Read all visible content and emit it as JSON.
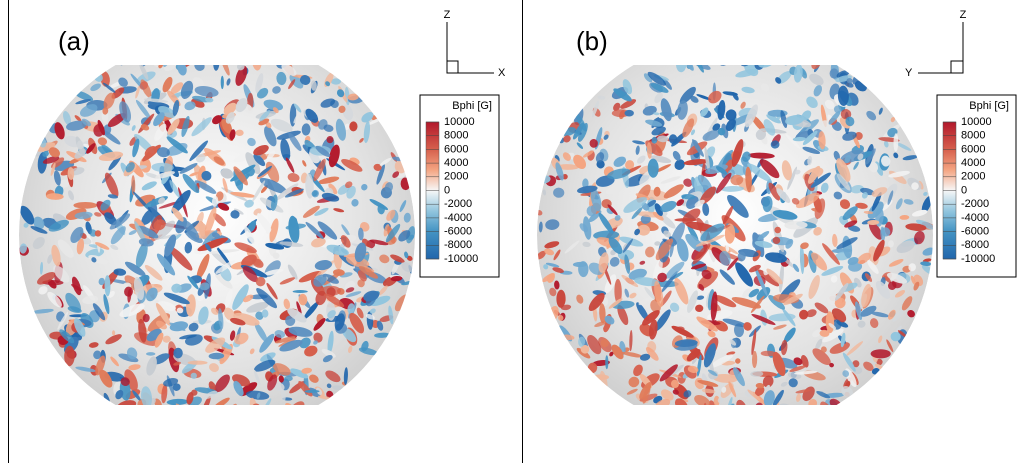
{
  "panels": [
    {
      "label": "(a)",
      "axes": {
        "up": "Z",
        "side": "X"
      },
      "colorbar": {
        "title": "Bphi [G]",
        "ticks": [
          10000,
          8000,
          6000,
          4000,
          2000,
          0,
          -2000,
          -4000,
          -6000,
          -8000,
          -10000
        ]
      }
    },
    {
      "label": "(b)",
      "axes": {
        "up": "Z",
        "side": "Y"
      },
      "colorbar": {
        "title": "Bphi [G]",
        "ticks": [
          10000,
          8000,
          6000,
          4000,
          2000,
          0,
          -2000,
          -4000,
          -6000,
          -8000,
          -10000
        ]
      }
    }
  ]
}
